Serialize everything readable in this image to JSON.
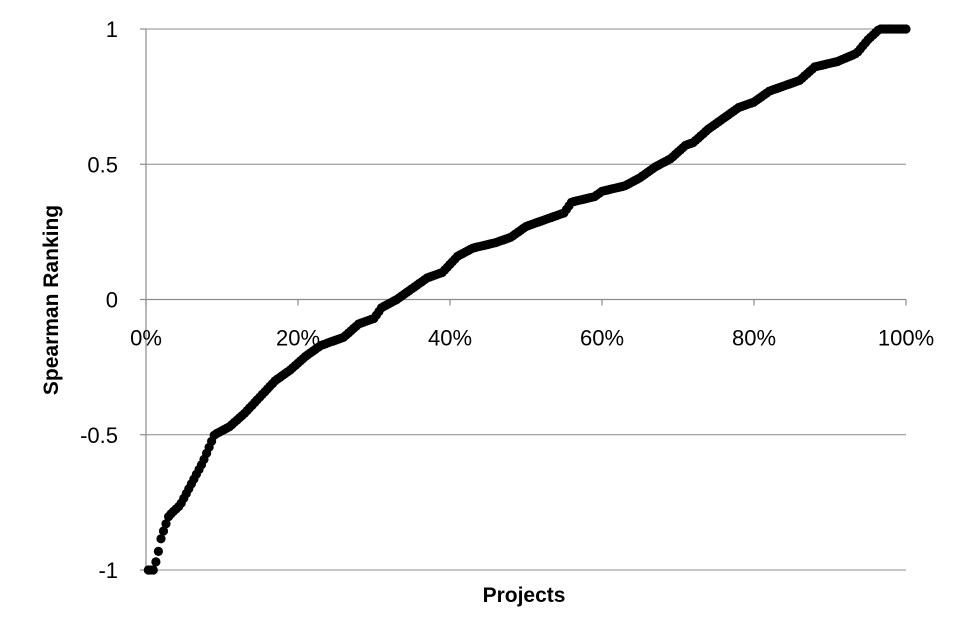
{
  "chart_data": {
    "type": "scatter",
    "title": "",
    "xlabel": "Projects",
    "ylabel": "Spearman Ranking",
    "xlim": [
      0,
      1
    ],
    "ylim": [
      -1,
      1
    ],
    "grid": "horizontal",
    "legend": "none",
    "marker_color": "#000000",
    "y_ticks": [
      {
        "value": 1,
        "label": "1"
      },
      {
        "value": 0.5,
        "label": "0.5"
      },
      {
        "value": 0,
        "label": "0"
      },
      {
        "value": -0.5,
        "label": "-0.5"
      },
      {
        "value": -1,
        "label": "-1"
      }
    ],
    "x_ticks": [
      {
        "value": 0,
        "label": "0%"
      },
      {
        "value": 0.2,
        "label": "20%"
      },
      {
        "value": 0.4,
        "label": "40%"
      },
      {
        "value": 0.6,
        "label": "60%"
      },
      {
        "value": 0.8,
        "label": "80%"
      },
      {
        "value": 1.0,
        "label": "100%"
      }
    ],
    "curve_knots": [
      [
        0.003,
        -1.0
      ],
      [
        0.01,
        -1.0
      ],
      [
        0.015,
        -0.95
      ],
      [
        0.02,
        -0.88
      ],
      [
        0.03,
        -0.8
      ],
      [
        0.045,
        -0.76
      ],
      [
        0.06,
        -0.68
      ],
      [
        0.075,
        -0.6
      ],
      [
        0.09,
        -0.5
      ],
      [
        0.11,
        -0.47
      ],
      [
        0.13,
        -0.42
      ],
      [
        0.15,
        -0.36
      ],
      [
        0.17,
        -0.3
      ],
      [
        0.19,
        -0.26
      ],
      [
        0.21,
        -0.21
      ],
      [
        0.23,
        -0.17
      ],
      [
        0.26,
        -0.14
      ],
      [
        0.28,
        -0.09
      ],
      [
        0.3,
        -0.07
      ],
      [
        0.31,
        -0.03
      ],
      [
        0.33,
        0.0
      ],
      [
        0.35,
        0.04
      ],
      [
        0.37,
        0.08
      ],
      [
        0.39,
        0.1
      ],
      [
        0.41,
        0.16
      ],
      [
        0.43,
        0.19
      ],
      [
        0.46,
        0.21
      ],
      [
        0.48,
        0.23
      ],
      [
        0.5,
        0.27
      ],
      [
        0.52,
        0.29
      ],
      [
        0.55,
        0.32
      ],
      [
        0.56,
        0.36
      ],
      [
        0.59,
        0.38
      ],
      [
        0.6,
        0.4
      ],
      [
        0.63,
        0.42
      ],
      [
        0.65,
        0.45
      ],
      [
        0.67,
        0.49
      ],
      [
        0.69,
        0.52
      ],
      [
        0.71,
        0.57
      ],
      [
        0.72,
        0.58
      ],
      [
        0.74,
        0.63
      ],
      [
        0.76,
        0.67
      ],
      [
        0.78,
        0.71
      ],
      [
        0.8,
        0.73
      ],
      [
        0.82,
        0.77
      ],
      [
        0.84,
        0.79
      ],
      [
        0.86,
        0.81
      ],
      [
        0.88,
        0.86
      ],
      [
        0.91,
        0.88
      ],
      [
        0.935,
        0.91
      ],
      [
        0.95,
        0.96
      ],
      [
        0.965,
        1.0
      ],
      [
        1.0,
        1.0
      ]
    ],
    "point_count": 300
  }
}
